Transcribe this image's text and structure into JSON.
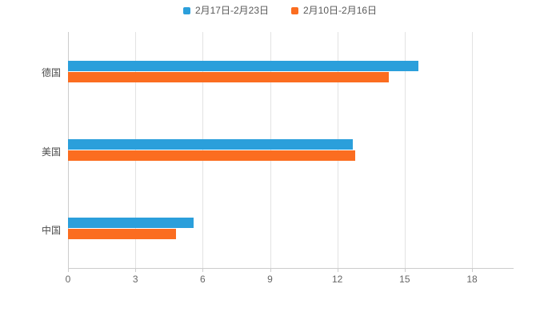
{
  "legend": {
    "items": [
      {
        "label": "2月17日-2月23日",
        "color": "#2B9FDB"
      },
      {
        "label": "2月10日-2月16日",
        "color": "#FB6D20"
      }
    ]
  },
  "chart_data": {
    "type": "bar",
    "orientation": "horizontal",
    "title": "",
    "xlabel": "",
    "ylabel": "",
    "categories": [
      "德国",
      "美国",
      "中国"
    ],
    "series": [
      {
        "name": "2月17日-2月23日",
        "color": "#2B9FDB",
        "values": [
          15.6,
          12.7,
          5.6
        ]
      },
      {
        "name": "2月10日-2月16日",
        "color": "#FB6D20",
        "values": [
          14.3,
          12.8,
          4.8
        ]
      }
    ],
    "xlim": [
      0,
      18
    ],
    "xticks": [
      0,
      3,
      6,
      9,
      12,
      15,
      18
    ],
    "grid": true,
    "legend_position": "top"
  },
  "colors": {
    "axis": "#cccccc",
    "grid": "#e3e3e3",
    "tick_text": "#666666",
    "category_text": "#4d4d4d",
    "background": "#ffffff"
  }
}
